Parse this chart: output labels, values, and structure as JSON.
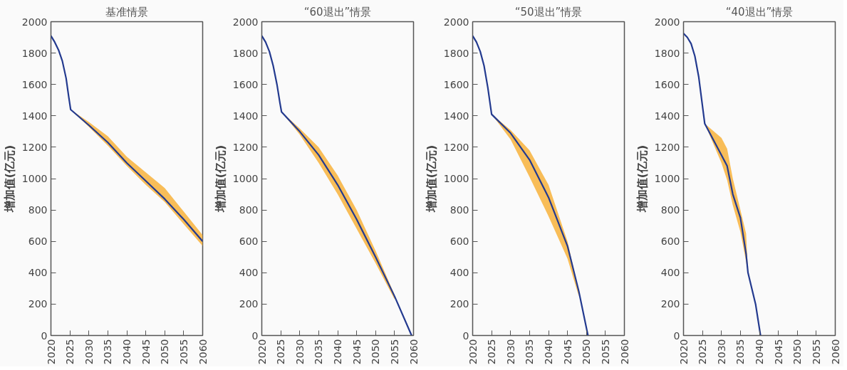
{
  "chart_data": [
    {
      "type": "line",
      "title": "基准情景",
      "ylabel": "增加值(亿元)",
      "xlim": [
        2020,
        2060
      ],
      "xticks": [
        2020,
        2025,
        2030,
        2035,
        2040,
        2045,
        2050,
        2055,
        2060
      ],
      "ylim": [
        0,
        2000
      ],
      "yticks": [
        0,
        200,
        400,
        600,
        800,
        1000,
        1200,
        1400,
        1600,
        1800,
        2000
      ],
      "grid": false,
      "marker": "none",
      "line_style": "solid",
      "series": [
        {
          "color": "#233a8f",
          "x": [
            2020,
            2021,
            2022,
            2023,
            2024,
            2024.7,
            2025.2,
            2030,
            2035,
            2040,
            2045,
            2050,
            2055,
            2060
          ],
          "values": [
            1910,
            1870,
            1820,
            1750,
            1640,
            1520,
            1440,
            1340,
            1230,
            1100,
            985,
            870,
            740,
            600
          ],
          "lower": [
            null,
            null,
            null,
            null,
            null,
            null,
            1440,
            1330,
            1210,
            1080,
            960,
            850,
            710,
            570
          ],
          "upper": [
            null,
            null,
            null,
            null,
            null,
            null,
            1440,
            1360,
            1270,
            1140,
            1040,
            940,
            790,
            640
          ]
        }
      ]
    },
    {
      "type": "line",
      "title": "“60退出”情景",
      "ylabel": "增加值(亿元)",
      "xlim": [
        2020,
        2060
      ],
      "xticks": [
        2020,
        2025,
        2030,
        2035,
        2040,
        2045,
        2050,
        2055,
        2060
      ],
      "ylim": [
        0,
        2000
      ],
      "yticks": [
        0,
        200,
        400,
        600,
        800,
        1000,
        1200,
        1400,
        1600,
        1800,
        2000
      ],
      "grid": false,
      "marker": "none",
      "line_style": "solid",
      "series": [
        {
          "color": "#233a8f",
          "x": [
            2020,
            2021,
            2022,
            2023,
            2024,
            2024.8,
            2025.2,
            2030,
            2035,
            2040,
            2045,
            2050,
            2055,
            2059.5
          ],
          "values": [
            1910,
            1870,
            1810,
            1720,
            1600,
            1480,
            1425,
            1300,
            1150,
            960,
            740,
            500,
            250,
            0
          ],
          "lower": [
            null,
            null,
            null,
            null,
            null,
            null,
            1425,
            1280,
            1100,
            900,
            680,
            460,
            230,
            null
          ],
          "upper": [
            null,
            null,
            null,
            null,
            null,
            null,
            1425,
            1320,
            1200,
            1020,
            800,
            540,
            260,
            null
          ]
        }
      ]
    },
    {
      "type": "line",
      "title": "“50退出”情景",
      "ylabel": "增加值(亿元)",
      "xlim": [
        2020,
        2060
      ],
      "xticks": [
        2020,
        2025,
        2030,
        2035,
        2040,
        2045,
        2050,
        2055,
        2060
      ],
      "ylim": [
        0,
        2000
      ],
      "yticks": [
        0,
        200,
        400,
        600,
        800,
        1000,
        1200,
        1400,
        1600,
        1800,
        2000
      ],
      "grid": false,
      "marker": "none",
      "line_style": "solid",
      "series": [
        {
          "color": "#233a8f",
          "x": [
            2020,
            2021,
            2022,
            2023,
            2024,
            2025,
            2030,
            2035,
            2040,
            2045,
            2048,
            2050.4
          ],
          "values": [
            1910,
            1870,
            1810,
            1720,
            1580,
            1410,
            1290,
            1120,
            880,
            570,
            280,
            0
          ],
          "lower": [
            null,
            null,
            null,
            null,
            null,
            1410,
            1250,
            1010,
            760,
            490,
            250,
            null
          ],
          "upper": [
            null,
            null,
            null,
            null,
            null,
            1410,
            1310,
            1180,
            960,
            600,
            280,
            null
          ]
        }
      ]
    },
    {
      "type": "line",
      "title": "“40退出”情景",
      "ylabel": "增加值(亿元)",
      "xlim": [
        2020,
        2060
      ],
      "xticks": [
        2020,
        2025,
        2030,
        2035,
        2040,
        2045,
        2050,
        2055,
        2060
      ],
      "ylim": [
        0,
        2000
      ],
      "yticks": [
        0,
        200,
        400,
        600,
        800,
        1000,
        1200,
        1400,
        1600,
        1800,
        2000
      ],
      "grid": false,
      "marker": "none",
      "line_style": "solid",
      "series": [
        {
          "color": "#233a8f",
          "x": [
            2020,
            2021,
            2022,
            2023,
            2024,
            2025.6,
            2030,
            2031.5,
            2033,
            2035,
            2036.5,
            2037,
            2039,
            2040.3
          ],
          "values": [
            1925,
            1900,
            1860,
            1780,
            1650,
            1350,
            1150,
            1080,
            900,
            750,
            520,
            400,
            200,
            0
          ],
          "lower": [
            null,
            null,
            null,
            null,
            null,
            1350,
            1100,
            990,
            830,
            660,
            470,
            400,
            null,
            null
          ],
          "upper": [
            null,
            null,
            null,
            null,
            null,
            1350,
            1260,
            1190,
            1000,
            800,
            650,
            400,
            null,
            null
          ]
        }
      ]
    }
  ]
}
